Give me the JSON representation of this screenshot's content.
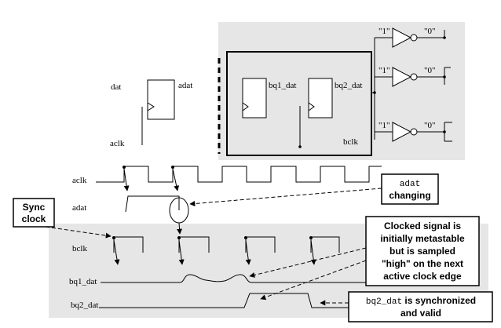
{
  "blocks": {
    "ff_a": {
      "in": "dat",
      "out": "adat",
      "clk": "aclk"
    },
    "ff_b1": {
      "out": "bq1_dat"
    },
    "ff_b2": {
      "out": "bq2_dat",
      "clk": "bclk"
    },
    "inverters": [
      {
        "in": "\"1\"",
        "out": "\"0\""
      },
      {
        "in": "\"1\"",
        "out": "\"0\""
      },
      {
        "in": "\"1\"",
        "out": "\"0\""
      }
    ]
  },
  "waves": {
    "aclk": "aclk",
    "adat": "adat",
    "bclk": "bclk",
    "bq1": "bq1_dat",
    "bq2": "bq2_dat"
  },
  "callouts": {
    "sync_clock": [
      "Sync",
      "clock"
    ],
    "adat_changing": {
      "code": "adat",
      "text": "changing"
    },
    "metastable": [
      "Clocked signal is",
      "initially metastable",
      "but is sampled",
      "\"high\" on the next",
      "active clock edge"
    ],
    "synchronized": {
      "code": "bq2_dat",
      "text1": " is synchronized",
      "text2": "and valid"
    }
  }
}
